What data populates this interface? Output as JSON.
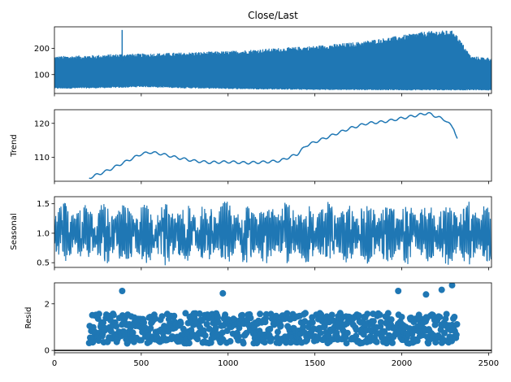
{
  "chart_data": [
    {
      "type": "line",
      "title": "Close/Last",
      "ylabel": "",
      "xlim": [
        0,
        2517
      ],
      "ylim": [
        28,
        282
      ],
      "x_ticks": [
        0,
        500,
        1000,
        1500,
        2000,
        2500
      ],
      "y_ticks": [
        100,
        200
      ],
      "y_tick_labels": [
        "100",
        "200"
      ],
      "series": [
        {
          "color": "#1f77b4",
          "style": "oscillating band between lower and upper envelopes",
          "x": [
            0,
            250,
            390,
            500,
            750,
            1000,
            1250,
            1500,
            1750,
            2000,
            2100,
            2200,
            2300,
            2400,
            2517
          ],
          "upper": [
            170,
            175,
            180,
            180,
            185,
            190,
            200,
            210,
            225,
            250,
            262,
            268,
            268,
            170,
            165
          ],
          "lower": [
            48,
            50,
            52,
            55,
            50,
            47,
            45,
            43,
            43,
            42,
            42,
            42,
            42,
            42,
            42
          ],
          "spike": {
            "x": 390,
            "y": 270
          }
        }
      ]
    },
    {
      "type": "line",
      "title": "",
      "ylabel": "Trend",
      "xlim": [
        0,
        2517
      ],
      "ylim": [
        103,
        124
      ],
      "x_ticks": [
        0,
        500,
        1000,
        1500,
        2000,
        2500
      ],
      "y_ticks": [
        110,
        120
      ],
      "y_tick_labels": [
        "110",
        "120"
      ],
      "series": [
        {
          "color": "#1f77b4",
          "x": [
            200,
            300,
            400,
            500,
            550,
            600,
            700,
            800,
            900,
            1000,
            1100,
            1200,
            1300,
            1400,
            1450,
            1500,
            1600,
            1700,
            1800,
            1900,
            2000,
            2100,
            2150,
            2200,
            2250,
            2300,
            2320
          ],
          "y": [
            104.0,
            106.0,
            108.5,
            111.0,
            111.5,
            111.2,
            110.0,
            109.0,
            108.5,
            108.7,
            108.4,
            108.6,
            109.0,
            111.0,
            113.5,
            114.5,
            116.5,
            118.5,
            120.0,
            120.5,
            121.5,
            122.5,
            123.0,
            122.0,
            121.0,
            118.5,
            115.5
          ]
        }
      ]
    },
    {
      "type": "line",
      "title": "",
      "ylabel": "Seasonal",
      "xlim": [
        0,
        2517
      ],
      "ylim": [
        0.42,
        1.62
      ],
      "x_ticks": [
        0,
        500,
        1000,
        1500,
        2000,
        2500
      ],
      "y_ticks": [
        0.5,
        1.0,
        1.5
      ],
      "y_tick_labels": [
        "0.5",
        "1.0",
        "1.5"
      ],
      "series": [
        {
          "color": "#1f77b4",
          "style": "periodic oscillation around 1.0",
          "center": 1.0,
          "max": 1.55,
          "min": 0.45
        }
      ]
    },
    {
      "type": "scatter",
      "title": "",
      "ylabel": "Resid",
      "xlabel": "",
      "xlim": [
        0,
        2517
      ],
      "ylim": [
        -0.1,
        2.9
      ],
      "x_ticks": [
        0,
        500,
        1000,
        1500,
        2000,
        2500
      ],
      "x_tick_labels": [
        "0",
        "500",
        "1000",
        "1500",
        "2000",
        "2500"
      ],
      "y_ticks": [
        0,
        2
      ],
      "y_tick_labels": [
        "0",
        "2"
      ],
      "baseline": 0,
      "series": [
        {
          "color": "#1f77b4",
          "x_range": [
            200,
            2320
          ],
          "typical_range": [
            0.3,
            1.6
          ],
          "outliers": [
            {
              "x": 390,
              "y": 2.55
            },
            {
              "x": 970,
              "y": 2.45
            },
            {
              "x": 1980,
              "y": 2.55
            },
            {
              "x": 2140,
              "y": 2.4
            },
            {
              "x": 2290,
              "y": 2.8
            },
            {
              "x": 2230,
              "y": 2.6
            }
          ]
        }
      ]
    }
  ],
  "colors": {
    "series": "#1f77b4",
    "axes": "#000000",
    "background": "#ffffff"
  }
}
